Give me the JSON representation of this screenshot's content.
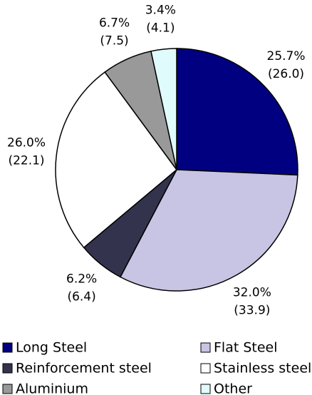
{
  "chart_data": {
    "type": "pie",
    "categories": [
      "Long Steel",
      "Flat Steel",
      "Reinforcement steel",
      "Stainless steel",
      "Aluminium",
      "Other"
    ],
    "colors": [
      "#000080",
      "#c8c4e4",
      "#33334d",
      "#ffffff",
      "#999999",
      "#e0fbfb"
    ],
    "values": [
      25.7,
      32.0,
      6.2,
      26.0,
      6.7,
      3.4
    ],
    "value_labels": [
      "25.7%",
      "32.0%",
      "6.2%",
      "26.0%",
      "6.7%",
      "3.4%"
    ],
    "secondary_values": [
      26.0,
      33.9,
      6.4,
      22.1,
      7.5,
      4.1
    ],
    "secondary_value_labels": [
      "(26.0)",
      "(33.9)",
      "(6.4)",
      "(22.1)",
      "(7.5)",
      "(4.1)"
    ],
    "legend": "bottom"
  }
}
